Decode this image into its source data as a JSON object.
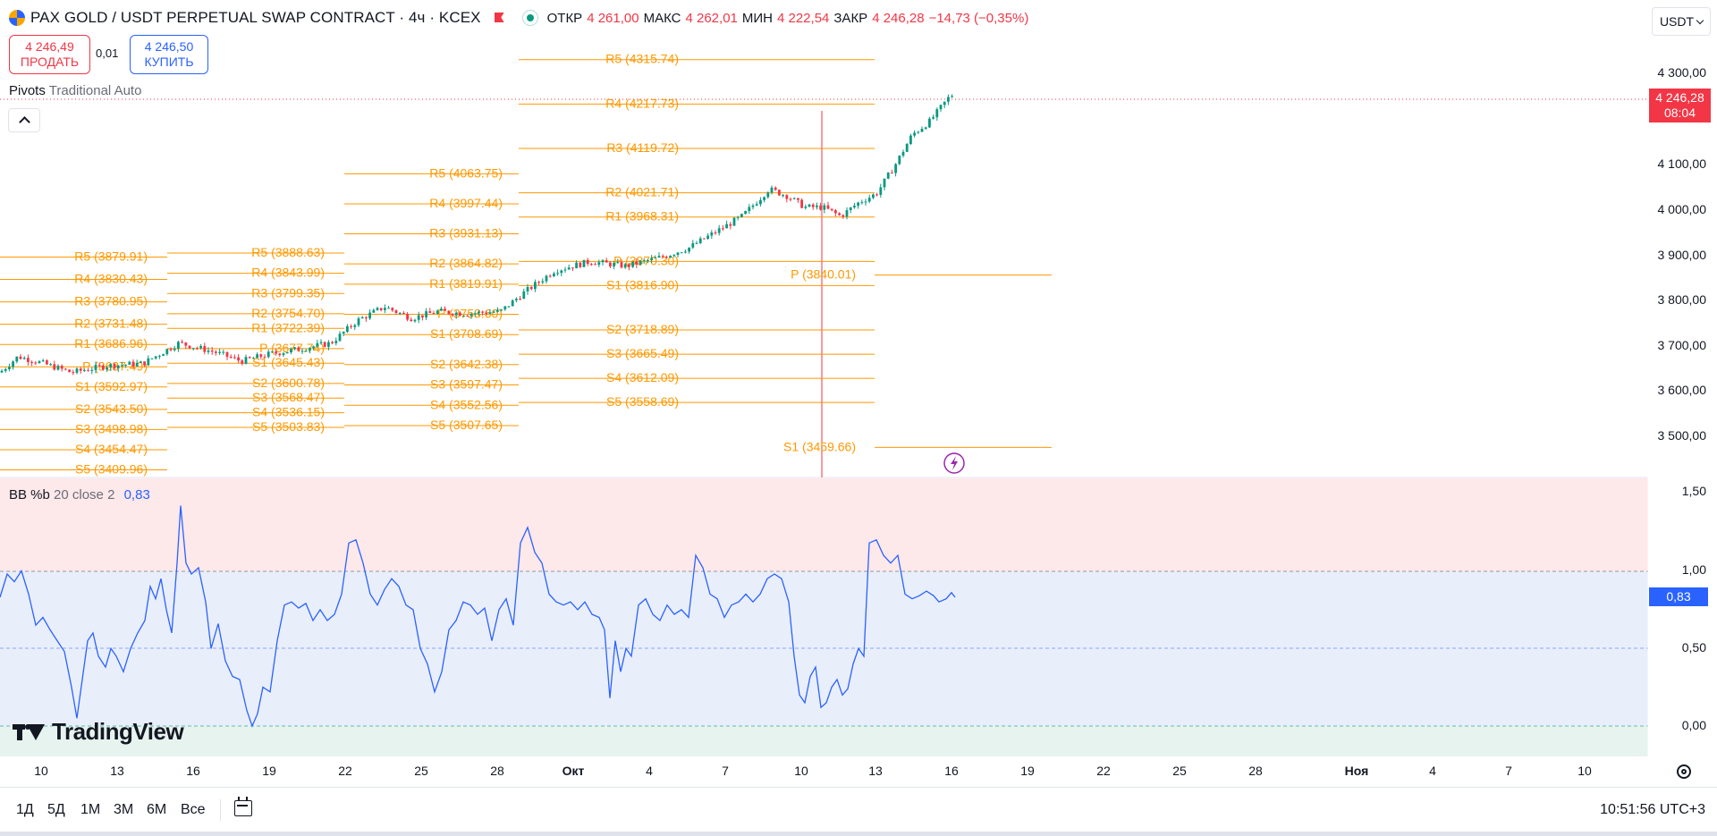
{
  "header": {
    "symbol_title": "PAX GOLD / USDT PERPETUAL SWAP CONTRACT · 4ч · KCEX",
    "ohlc": [
      {
        "key": "ОТКР",
        "value": "4 261,00"
      },
      {
        "key": "МАКС",
        "value": "4 262,01"
      },
      {
        "key": "МИН",
        "value": "4 222,54"
      },
      {
        "key": "ЗАКР",
        "value": "4 246,28"
      }
    ],
    "change": "−14,73 (−0,35%)",
    "currency": "USDT"
  },
  "trade": {
    "sell_price": "4 246,49",
    "sell_label": "ПРОДАТЬ",
    "spread": "0,01",
    "buy_price": "4 246,50",
    "buy_label": "КУПИТЬ"
  },
  "pivots_indicator": {
    "name": "Pivots",
    "params": "Traditional Auto"
  },
  "price_axis": {
    "ticks": [
      "4 300,00",
      "4 100,00",
      "4 000,00",
      "3 900,00",
      "3 800,00",
      "3 700,00",
      "3 600,00",
      "3 500,00"
    ],
    "current_price": "4 246,28",
    "countdown": "08:04"
  },
  "bb_indicator": {
    "name": "BB %b",
    "params": "20 close 2",
    "value": "0,83",
    "axis_ticks": [
      "1,50",
      "1,00",
      "0,50",
      "0,00"
    ]
  },
  "time_axis": {
    "labels": [
      "10",
      "13",
      "16",
      "19",
      "22",
      "25",
      "28",
      "Окт",
      "4",
      "7",
      "10",
      "13",
      "16",
      "19",
      "22",
      "25",
      "28",
      "Ноя",
      "4",
      "7",
      "10"
    ],
    "bold_labels": [
      "Окт",
      "Ноя"
    ]
  },
  "branding": {
    "logo_text": "TradingView"
  },
  "bottom_bar": {
    "ranges": [
      "1Д",
      "5Д",
      "1М",
      "3М",
      "6М",
      "Все"
    ],
    "clock": "10:51:56 UTC+3"
  },
  "pivot_groups": [
    {
      "levels": [
        {
          "name": "R5",
          "value": "3879.91"
        },
        {
          "name": "R4",
          "value": "3830.43"
        },
        {
          "name": "R3",
          "value": "3780.95"
        },
        {
          "name": "R2",
          "value": "3731.48"
        },
        {
          "name": "R1",
          "value": "3686.96"
        },
        {
          "name": "P",
          "value": "3637.49"
        },
        {
          "name": "S1",
          "value": "3592.97"
        },
        {
          "name": "S2",
          "value": "3543.50"
        },
        {
          "name": "S3",
          "value": "3498.98"
        },
        {
          "name": "S4",
          "value": "3454.47"
        },
        {
          "name": "S5",
          "value": "3409.96"
        }
      ]
    },
    {
      "levels": [
        {
          "name": "R5",
          "value": "3888.63"
        },
        {
          "name": "R4",
          "value": "3843.99"
        },
        {
          "name": "R3",
          "value": "3799.35"
        },
        {
          "name": "R2",
          "value": "3754.70"
        },
        {
          "name": "R1",
          "value": "3722.39"
        },
        {
          "name": "P",
          "value": "3677.74"
        },
        {
          "name": "S1",
          "value": "3645.43"
        },
        {
          "name": "S2",
          "value": "3600.78"
        },
        {
          "name": "S3",
          "value": "3568.47"
        },
        {
          "name": "S4",
          "value": "3536.15"
        },
        {
          "name": "S5",
          "value": "3503.83"
        }
      ]
    },
    {
      "levels": [
        {
          "name": "R5",
          "value": "4063.75"
        },
        {
          "name": "R4",
          "value": "3997.44"
        },
        {
          "name": "R3",
          "value": "3931.13"
        },
        {
          "name": "R2",
          "value": "3864.82"
        },
        {
          "name": "R1",
          "value": "3819.91"
        },
        {
          "name": "P",
          "value": "3753.60"
        },
        {
          "name": "S1",
          "value": "3708.69"
        },
        {
          "name": "S2",
          "value": "3642.38"
        },
        {
          "name": "S3",
          "value": "3597.47"
        },
        {
          "name": "S4",
          "value": "3552.56"
        },
        {
          "name": "S5",
          "value": "3507.65"
        }
      ]
    },
    {
      "levels": [
        {
          "name": "R5",
          "value": "4315.74"
        },
        {
          "name": "R4",
          "value": "4217.73"
        },
        {
          "name": "R3",
          "value": "4119.72"
        },
        {
          "name": "R2",
          "value": "4021.71"
        },
        {
          "name": "R1",
          "value": "3968.31"
        },
        {
          "name": "P",
          "value": "3870.30"
        },
        {
          "name": "S1",
          "value": "3816.90"
        },
        {
          "name": "S2",
          "value": "3718.89"
        },
        {
          "name": "S3",
          "value": "3665.49"
        },
        {
          "name": "S4",
          "value": "3612.09"
        },
        {
          "name": "S5",
          "value": "3558.69"
        }
      ]
    },
    {
      "levels": [
        {
          "name": "P",
          "value": "3840.01"
        },
        {
          "name": "S1",
          "value": "3459.66"
        }
      ]
    }
  ],
  "colors": {
    "up": "#089981",
    "down": "#f23645",
    "pivot": "#ff9800",
    "bb_line": "#2962ff",
    "bb_upper_zone": "#fde8ea",
    "bb_mid_zone": "#e9eefb",
    "bb_lower_zone": "#e6f3ee",
    "accent": "#2962ff"
  }
}
